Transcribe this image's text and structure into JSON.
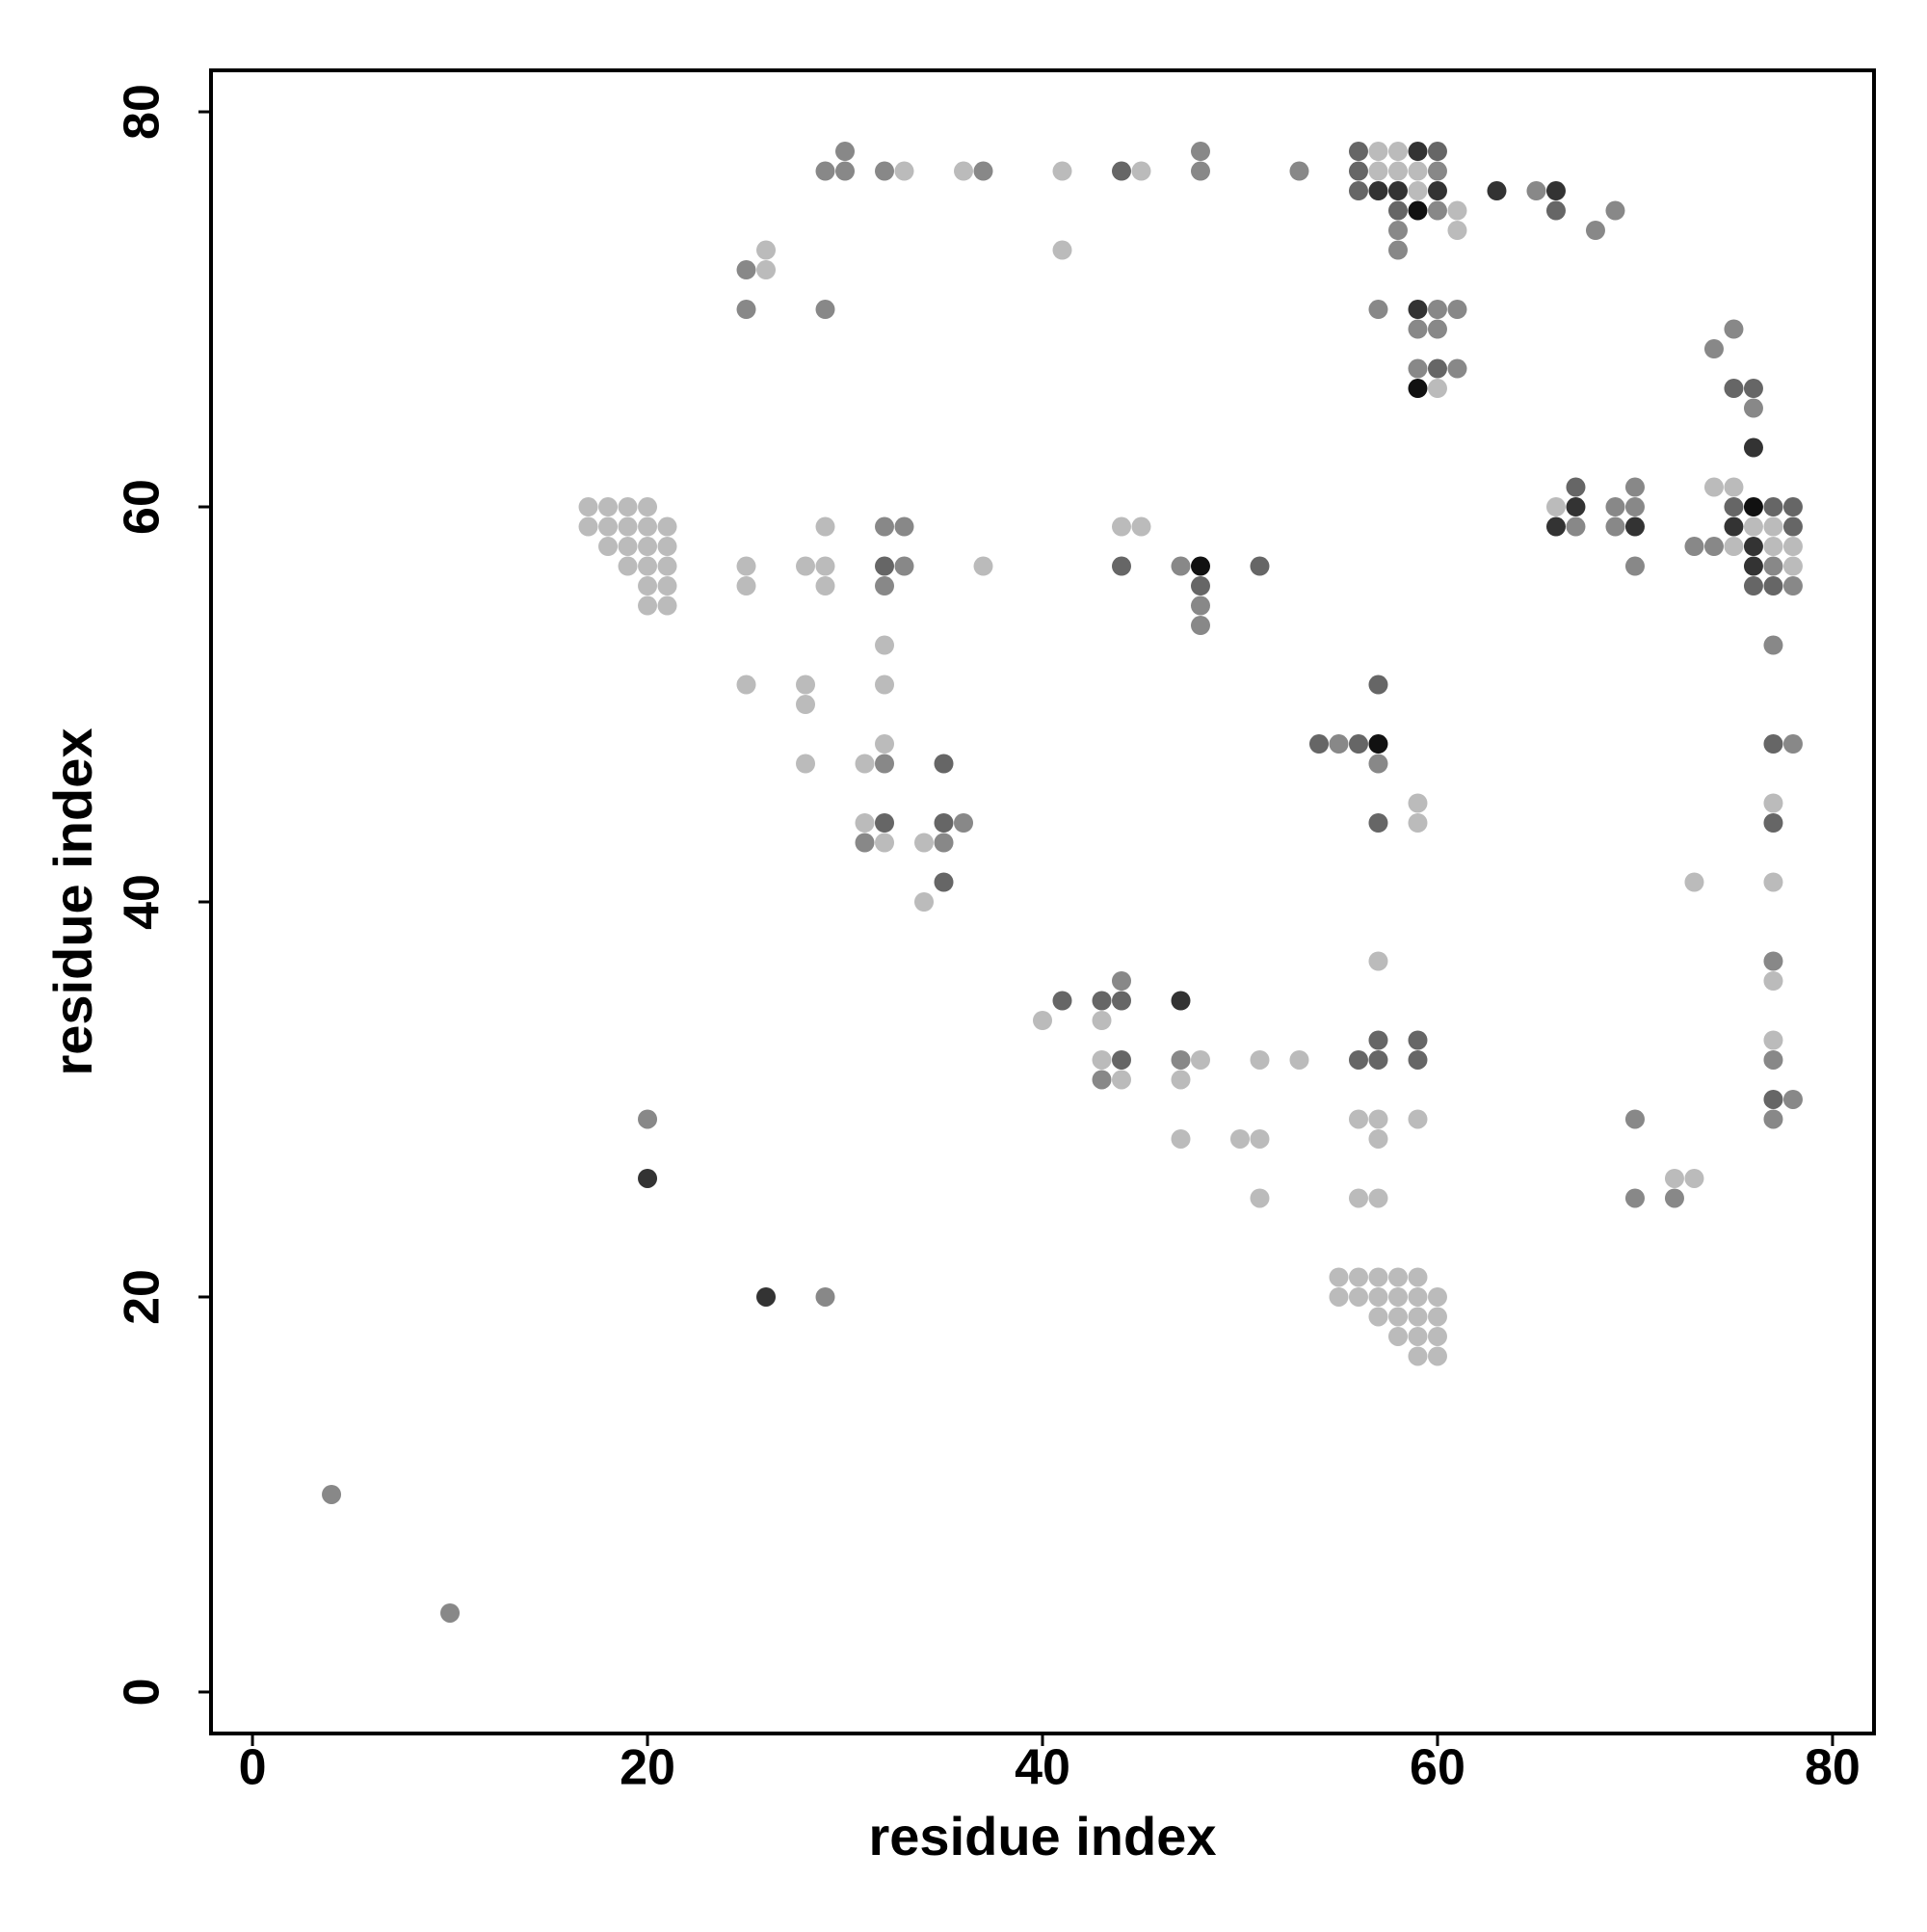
{
  "chart_data": {
    "type": "scatter",
    "xlabel": "residue index",
    "ylabel": "residue index",
    "xlim": [
      -2.1,
      82.1
    ],
    "ylim": [
      -2.1,
      82.1
    ],
    "xticks": [
      0,
      20,
      40,
      60,
      80
    ],
    "yticks": [
      0,
      20,
      40,
      60,
      80
    ],
    "grid": false,
    "x": [
      30,
      48,
      56,
      57,
      58,
      59,
      60,
      29,
      30,
      32,
      33,
      36,
      37,
      41,
      44,
      45,
      48,
      53,
      56,
      57,
      58,
      59,
      60,
      56,
      57,
      58,
      59,
      60,
      63,
      65,
      66,
      58,
      59,
      60,
      61,
      66,
      69,
      58,
      61,
      68,
      26,
      41,
      58,
      25,
      26,
      25,
      29,
      57,
      59,
      60,
      61,
      59,
      60,
      75,
      74,
      59,
      60,
      61,
      59,
      60,
      75,
      76,
      76,
      76,
      67,
      70,
      74,
      75,
      17,
      18,
      19,
      20,
      66,
      67,
      69,
      70,
      75,
      76,
      77,
      78,
      17,
      18,
      19,
      20,
      21,
      29,
      32,
      33,
      44,
      45,
      66,
      67,
      69,
      70,
      75,
      76,
      77,
      78,
      18,
      19,
      20,
      21,
      73,
      74,
      75,
      76,
      77,
      78,
      19,
      20,
      21,
      25,
      28,
      29,
      32,
      33,
      37,
      44,
      47,
      48,
      51,
      70,
      76,
      77,
      78,
      20,
      21,
      25,
      29,
      32,
      48,
      76,
      77,
      78,
      20,
      21,
      48,
      48,
      32,
      77,
      25,
      28,
      32,
      57,
      28,
      32,
      54,
      55,
      56,
      57,
      77,
      78,
      28,
      31,
      32,
      35,
      57,
      59,
      77,
      31,
      32,
      35,
      36,
      57,
      59,
      77,
      31,
      32,
      34,
      35,
      35,
      73,
      77,
      34,
      57,
      77,
      44,
      77,
      41,
      43,
      44,
      47,
      40,
      43,
      57,
      59,
      77,
      43,
      44,
      47,
      48,
      51,
      53,
      56,
      57,
      59,
      77,
      43,
      44,
      47,
      77,
      78,
      20,
      56,
      57,
      59,
      70,
      77,
      47,
      50,
      51,
      57,
      20,
      72,
      73,
      51,
      56,
      57,
      70,
      72,
      55,
      56,
      57,
      58,
      59,
      26,
      29,
      55,
      56,
      57,
      58,
      59,
      60,
      57,
      58,
      59,
      60,
      58,
      59,
      60,
      59,
      60,
      4,
      10
    ],
    "y": [
      78,
      78,
      78,
      78,
      78,
      78,
      78,
      77,
      77,
      77,
      77,
      77,
      77,
      77,
      77,
      77,
      77,
      77,
      77,
      77,
      77,
      77,
      77,
      76,
      76,
      76,
      76,
      76,
      76,
      76,
      76,
      75,
      75,
      75,
      75,
      75,
      75,
      74,
      74,
      74,
      73,
      73,
      73,
      72,
      72,
      70,
      70,
      70,
      70,
      70,
      70,
      69,
      69,
      69,
      68,
      67,
      67,
      67,
      66,
      66,
      66,
      66,
      65,
      63,
      61,
      61,
      61,
      61,
      60,
      60,
      60,
      60,
      60,
      60,
      60,
      60,
      60,
      60,
      60,
      60,
      59,
      59,
      59,
      59,
      59,
      59,
      59,
      59,
      59,
      59,
      59,
      59,
      59,
      59,
      59,
      59,
      59,
      59,
      58,
      58,
      58,
      58,
      58,
      58,
      58,
      58,
      58,
      58,
      57,
      57,
      57,
      57,
      57,
      57,
      57,
      57,
      57,
      57,
      57,
      57,
      57,
      57,
      57,
      57,
      57,
      56,
      56,
      56,
      56,
      56,
      56,
      56,
      56,
      56,
      55,
      55,
      55,
      54,
      53,
      53,
      51,
      51,
      51,
      51,
      50,
      48,
      48,
      48,
      48,
      48,
      48,
      48,
      47,
      47,
      47,
      47,
      47,
      45,
      45,
      44,
      44,
      44,
      44,
      44,
      44,
      44,
      43,
      43,
      43,
      43,
      41,
      41,
      41,
      40,
      37,
      37,
      36,
      36,
      35,
      35,
      35,
      35,
      34,
      34,
      33,
      33,
      33,
      32,
      32,
      32,
      32,
      32,
      32,
      32,
      32,
      32,
      32,
      31,
      31,
      31,
      30,
      30,
      29,
      29,
      29,
      29,
      29,
      29,
      28,
      28,
      28,
      28,
      26,
      26,
      26,
      25,
      25,
      25,
      25,
      25,
      21,
      21,
      21,
      21,
      21,
      20,
      20,
      20,
      20,
      20,
      20,
      20,
      20,
      19,
      19,
      19,
      19,
      18,
      18,
      18,
      17,
      17,
      10,
      4
    ],
    "colors": [
      "#888",
      "#888",
      "#666",
      "#bbb",
      "#bbb",
      "#333",
      "#666",
      "#888",
      "#888",
      "#888",
      "#bbb",
      "#bbb",
      "#888",
      "#bbb",
      "#666",
      "#bbb",
      "#888",
      "#888",
      "#666",
      "#bbb",
      "#bbb",
      "#bbb",
      "#888",
      "#666",
      "#333",
      "#333",
      "#bbb",
      "#333",
      "#333",
      "#888",
      "#333",
      "#666",
      "#111",
      "#888",
      "#bbb",
      "#666",
      "#888",
      "#888",
      "#bbb",
      "#888",
      "#bbb",
      "#bbb",
      "#888",
      "#888",
      "#bbb",
      "#888",
      "#888",
      "#888",
      "#333",
      "#888",
      "#888",
      "#888",
      "#888",
      "#888",
      "#888",
      "#888",
      "#666",
      "#888",
      "#111",
      "#bbb",
      "#666",
      "#666",
      "#888",
      "#333",
      "#666",
      "#888",
      "#bbb",
      "#bbb",
      "#bbb",
      "#bbb",
      "#bbb",
      "#bbb",
      "#bbb",
      "#333",
      "#888",
      "#888",
      "#666",
      "#111",
      "#666",
      "#666",
      "#bbb",
      "#bbb",
      "#bbb",
      "#bbb",
      "#bbb",
      "#bbb",
      "#888",
      "#888",
      "#bbb",
      "#bbb",
      "#333",
      "#888",
      "#888",
      "#333",
      "#333",
      "#bbb",
      "#bbb",
      "#666",
      "#bbb",
      "#bbb",
      "#bbb",
      "#bbb",
      "#888",
      "#888",
      "#bbb",
      "#333",
      "#bbb",
      "#bbb",
      "#bbb",
      "#bbb",
      "#bbb",
      "#bbb",
      "#bbb",
      "#bbb",
      "#666",
      "#888",
      "#bbb",
      "#666",
      "#888",
      "#111",
      "#666",
      "#888",
      "#333",
      "#888",
      "#bbb",
      "#bbb",
      "#bbb",
      "#bbb",
      "#bbb",
      "#888",
      "#666",
      "#666",
      "#666",
      "#888",
      "#bbb",
      "#bbb",
      "#888",
      "#888",
      "#bbb",
      "#888",
      "#bbb",
      "#bbb",
      "#bbb",
      "#666",
      "#bbb",
      "#bbb",
      "#666",
      "#888",
      "#666",
      "#111",
      "#666",
      "#888",
      "#bbb",
      "#bbb",
      "#888",
      "#666",
      "#888",
      "#bbb",
      "#bbb",
      "#bbb",
      "#666",
      "#666",
      "#888",
      "#666",
      "#bbb",
      "#666",
      "#888",
      "#bbb",
      "#bbb",
      "#888",
      "#666",
      "#bbb",
      "#bbb",
      "#bbb",
      "#bbb",
      "#888",
      "#888",
      "#bbb",
      "#666",
      "#666",
      "#666",
      "#333",
      "#bbb",
      "#bbb",
      "#666",
      "#666",
      "#bbb",
      "#bbb",
      "#666",
      "#888",
      "#bbb",
      "#bbb",
      "#bbb",
      "#666",
      "#666",
      "#666",
      "#888",
      "#888",
      "#bbb",
      "#bbb",
      "#666",
      "#888",
      "#888",
      "#bbb",
      "#bbb",
      "#bbb",
      "#888",
      "#888",
      "#bbb",
      "#bbb",
      "#bbb",
      "#bbb",
      "#333",
      "#bbb",
      "#bbb",
      "#bbb",
      "#bbb",
      "#bbb",
      "#888",
      "#888",
      "#bbb",
      "#bbb",
      "#bbb",
      "#bbb",
      "#bbb",
      "#333",
      "#888",
      "#bbb",
      "#bbb",
      "#bbb",
      "#bbb",
      "#bbb",
      "#bbb",
      "#bbb",
      "#bbb",
      "#bbb",
      "#bbb",
      "#bbb",
      "#bbb",
      "#bbb",
      "#bbb",
      "#bbb",
      "#888",
      "#888"
    ]
  }
}
